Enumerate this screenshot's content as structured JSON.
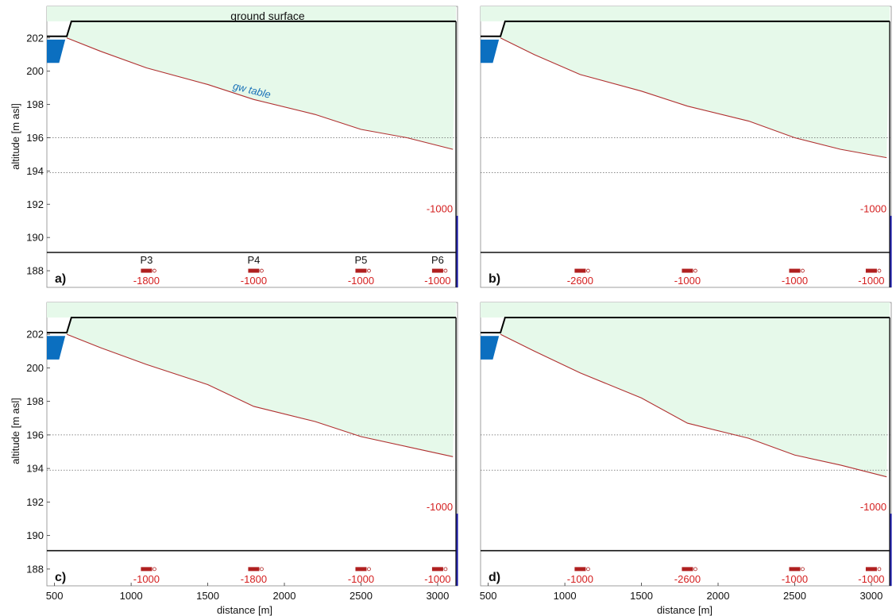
{
  "colors": {
    "unsaturated_fill": "#e6f9ea",
    "gw_line": "#b03030",
    "river": "#0b6fc0",
    "ground": "#000000",
    "dashed": "#666666",
    "rate_text": "#d42020",
    "gw_label": "#1a72b8"
  },
  "labels": {
    "ylabel": "altitude [m asl]",
    "xlabel": "distance [m]",
    "ground_surface": "ground surface",
    "gw_table": "gw table"
  },
  "chart_data": [
    {
      "type": "line",
      "panel": "a)",
      "xlim": [
        450,
        3130
      ],
      "ylim": [
        187,
        203.9
      ],
      "ground_surface": {
        "x": [
          450,
          580,
          610,
          3120
        ],
        "y": [
          202.1,
          202.1,
          203.0,
          203.0
        ]
      },
      "series": [
        {
          "x": [
            580,
            800,
            1100,
            1500,
            1800,
            2200,
            2500,
            2800,
            3100
          ],
          "y": [
            202.0,
            201.2,
            200.2,
            199.2,
            198.3,
            197.4,
            196.5,
            196.0,
            195.3
          ]
        }
      ],
      "dashed_levels": [
        196.0,
        193.9
      ],
      "wells": [
        {
          "name": "P3",
          "x": 1100,
          "rate": "-1800"
        },
        {
          "name": "P4",
          "x": 1800,
          "rate": "-1000"
        },
        {
          "name": "P5",
          "x": 2500,
          "rate": "-1000"
        },
        {
          "name": "P6",
          "x": 3000,
          "rate": "-1000"
        }
      ],
      "boundary_rate": "-1000"
    },
    {
      "type": "line",
      "panel": "b)",
      "xlim": [
        450,
        3130
      ],
      "ylim": [
        187,
        203.9
      ],
      "ground_surface": {
        "x": [
          450,
          580,
          610,
          3120
        ],
        "y": [
          202.1,
          202.1,
          203.0,
          203.0
        ]
      },
      "series": [
        {
          "x": [
            580,
            800,
            1100,
            1500,
            1800,
            2200,
            2500,
            2800,
            3100
          ],
          "y": [
            202.0,
            201.0,
            199.8,
            198.8,
            197.9,
            197.0,
            196.0,
            195.3,
            194.8
          ]
        }
      ],
      "dashed_levels": [
        196.0,
        193.9
      ],
      "wells": [
        {
          "name": "",
          "x": 1100,
          "rate": "-2600"
        },
        {
          "name": "",
          "x": 1800,
          "rate": "-1000"
        },
        {
          "name": "",
          "x": 2500,
          "rate": "-1000"
        },
        {
          "name": "",
          "x": 3000,
          "rate": "-1000"
        }
      ],
      "boundary_rate": "-1000"
    },
    {
      "type": "line",
      "panel": "c)",
      "xlim": [
        450,
        3130
      ],
      "ylim": [
        187,
        203.9
      ],
      "ground_surface": {
        "x": [
          450,
          580,
          610,
          3120
        ],
        "y": [
          202.1,
          202.1,
          203.0,
          203.0
        ]
      },
      "series": [
        {
          "x": [
            580,
            800,
            1100,
            1500,
            1800,
            2200,
            2500,
            2800,
            3100
          ],
          "y": [
            202.0,
            201.2,
            200.2,
            199.0,
            197.7,
            196.8,
            195.9,
            195.3,
            194.7
          ]
        }
      ],
      "dashed_levels": [
        196.0,
        193.9
      ],
      "wells": [
        {
          "name": "",
          "x": 1100,
          "rate": "-1000"
        },
        {
          "name": "",
          "x": 1800,
          "rate": "-1800"
        },
        {
          "name": "",
          "x": 2500,
          "rate": "-1000"
        },
        {
          "name": "",
          "x": 3000,
          "rate": "-1000"
        }
      ],
      "boundary_rate": "-1000"
    },
    {
      "type": "line",
      "panel": "d)",
      "xlim": [
        450,
        3130
      ],
      "ylim": [
        187,
        203.9
      ],
      "ground_surface": {
        "x": [
          450,
          580,
          610,
          3120
        ],
        "y": [
          202.1,
          202.1,
          203.0,
          203.0
        ]
      },
      "series": [
        {
          "x": [
            580,
            800,
            1100,
            1500,
            1800,
            2200,
            2500,
            2800,
            3100
          ],
          "y": [
            202.0,
            201.0,
            199.7,
            198.2,
            196.7,
            195.8,
            194.8,
            194.2,
            193.5
          ]
        }
      ],
      "dashed_levels": [
        196.0,
        193.9
      ],
      "wells": [
        {
          "name": "",
          "x": 1100,
          "rate": "-1000"
        },
        {
          "name": "",
          "x": 1800,
          "rate": "-2600"
        },
        {
          "name": "",
          "x": 2500,
          "rate": "-1000"
        },
        {
          "name": "",
          "x": 3000,
          "rate": "-1000"
        }
      ],
      "boundary_rate": "-1000"
    }
  ]
}
